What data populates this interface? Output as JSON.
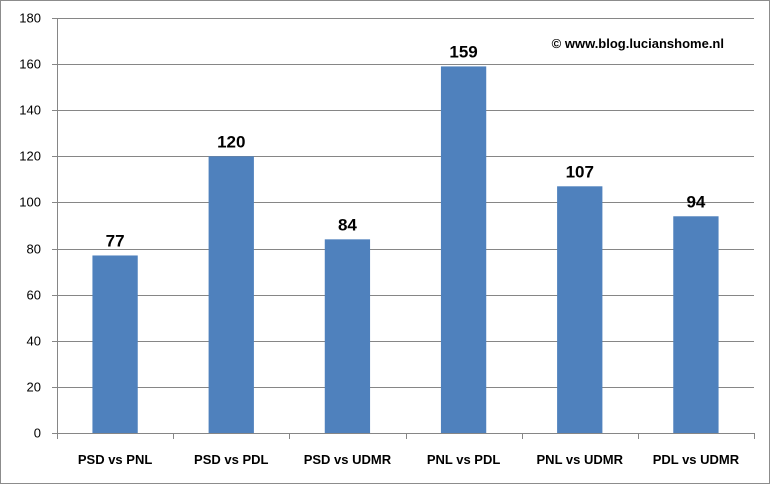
{
  "watermark": "© www.blog.lucianshome.nl",
  "colors": {
    "bar": "#4f81bd",
    "grid": "#868686",
    "axis": "#868686"
  },
  "chart_data": {
    "type": "bar",
    "categories": [
      "PSD vs PNL",
      "PSD vs PDL",
      "PSD vs UDMR",
      "PNL vs PDL",
      "PNL vs UDMR",
      "PDL vs UDMR"
    ],
    "values": [
      77,
      120,
      84,
      159,
      107,
      94
    ],
    "data_labels": [
      "77",
      "120",
      "84",
      "159",
      "107",
      "94"
    ],
    "y_ticks": [
      0,
      20,
      40,
      60,
      80,
      100,
      120,
      140,
      160,
      180
    ],
    "ylim": [
      0,
      180
    ],
    "grid": true,
    "legend": "none"
  }
}
